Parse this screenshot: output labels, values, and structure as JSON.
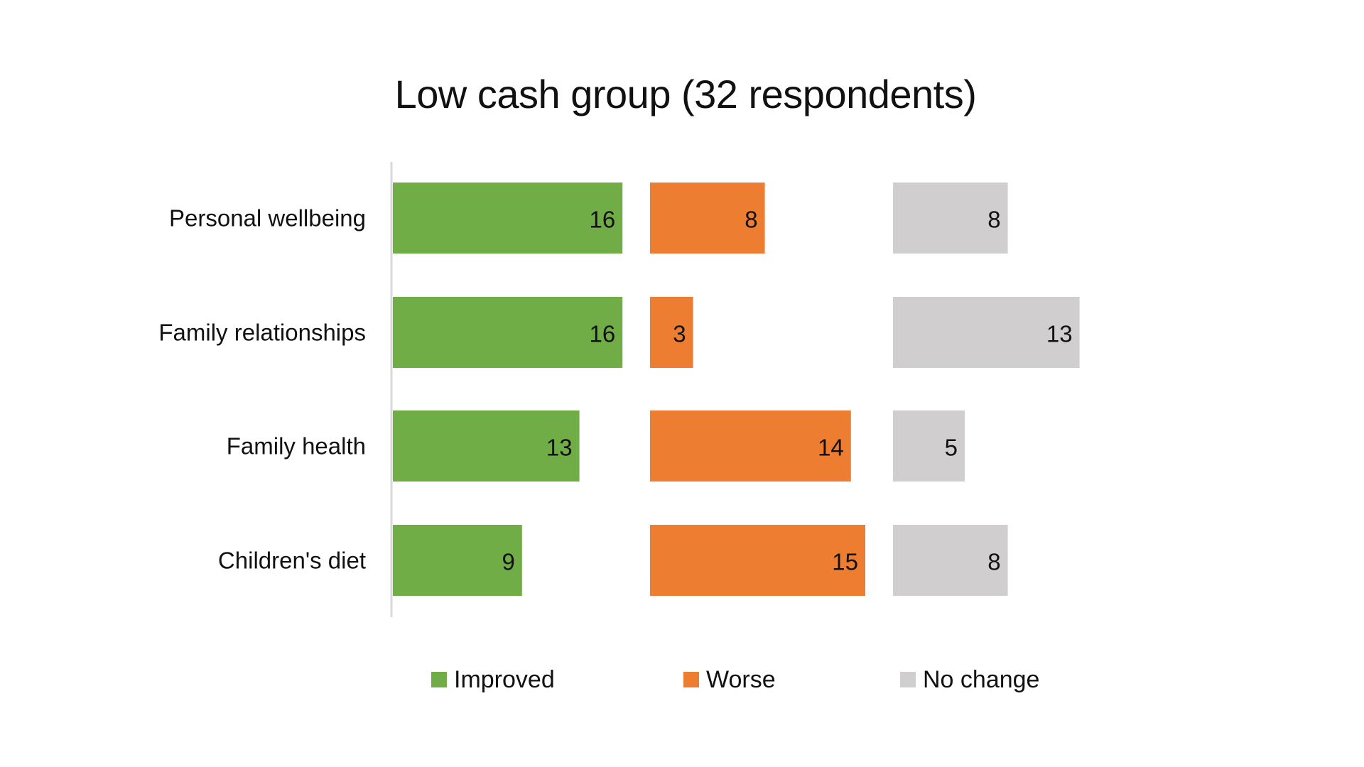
{
  "chart_data": {
    "type": "bar",
    "orientation": "horizontal",
    "layout": "side-by-side panels per series",
    "title": "Low cash group (32 respondents)",
    "categories": [
      "Personal wellbeing",
      "Family relationships",
      "Family health",
      "Children's diet"
    ],
    "series": [
      {
        "name": "Improved",
        "values": [
          16,
          16,
          13,
          9
        ],
        "color": "#70AD47"
      },
      {
        "name": "Worse",
        "values": [
          8,
          3,
          14,
          15
        ],
        "color": "#ED7D31"
      },
      {
        "name": "No change",
        "values": [
          8,
          13,
          5,
          8
        ],
        "color": "#D0CECE"
      }
    ],
    "data_labels": true,
    "axis_line_color": "#D9D9D9",
    "grid": false,
    "legend_placement": "bottom"
  }
}
